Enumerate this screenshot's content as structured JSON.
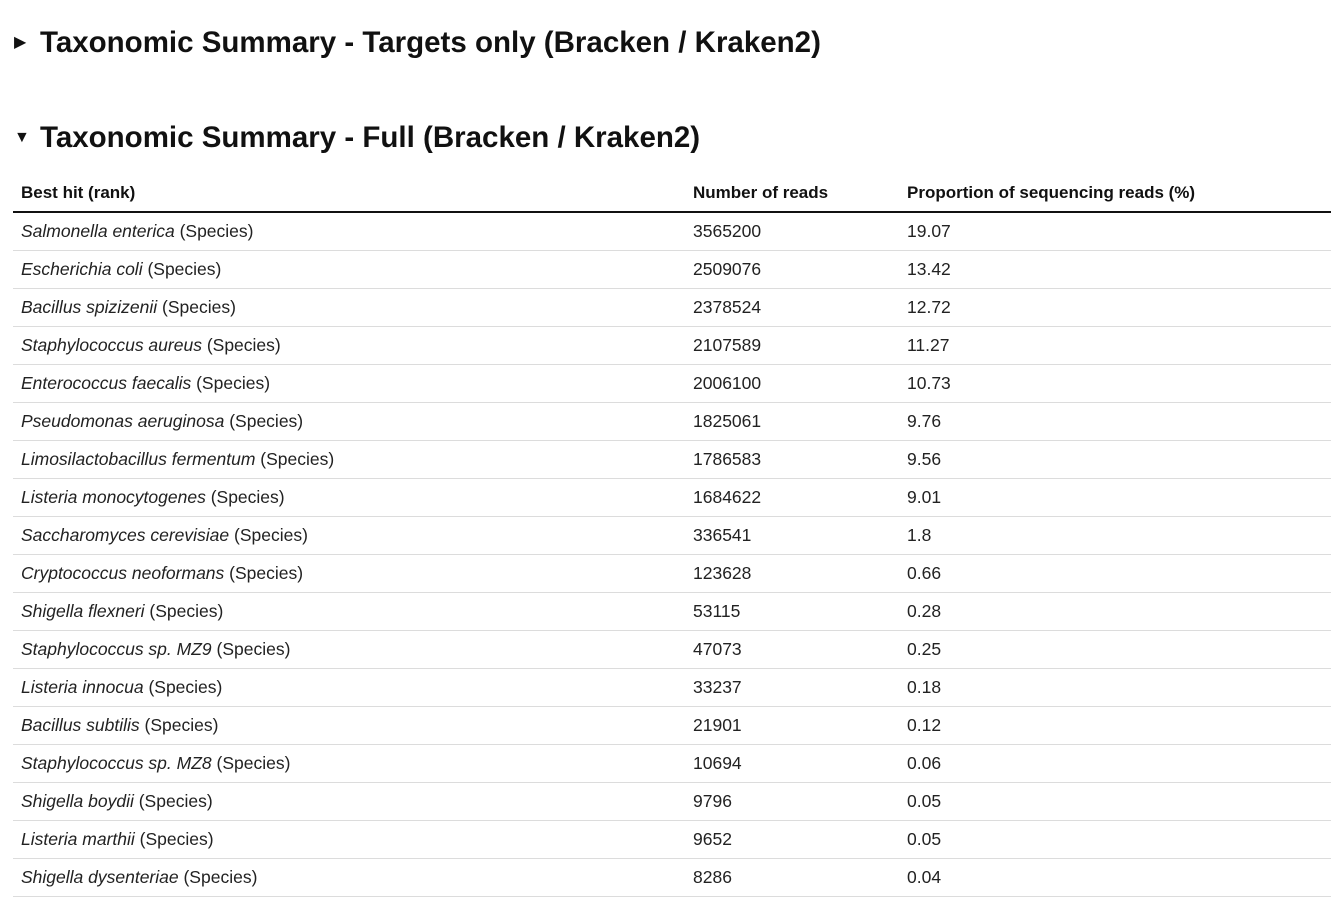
{
  "sections": {
    "targets": {
      "title": "Taxonomic Summary - Targets only (Bracken / Kraken2)",
      "expanded": false,
      "marker": "▶"
    },
    "full": {
      "title": "Taxonomic Summary - Full (Bracken / Kraken2)",
      "expanded": true,
      "marker": "▼"
    }
  },
  "table": {
    "headers": [
      "Best hit (rank)",
      "Number of reads",
      "Proportion of sequencing reads (%)"
    ],
    "rows": [
      {
        "species": "Salmonella enterica",
        "rank": "(Species)",
        "reads": "3565200",
        "proportion": "19.07"
      },
      {
        "species": "Escherichia coli",
        "rank": "(Species)",
        "reads": "2509076",
        "proportion": "13.42"
      },
      {
        "species": "Bacillus spizizenii",
        "rank": "(Species)",
        "reads": "2378524",
        "proportion": "12.72"
      },
      {
        "species": "Staphylococcus aureus",
        "rank": "(Species)",
        "reads": "2107589",
        "proportion": "11.27"
      },
      {
        "species": "Enterococcus faecalis",
        "rank": "(Species)",
        "reads": "2006100",
        "proportion": "10.73"
      },
      {
        "species": "Pseudomonas aeruginosa",
        "rank": "(Species)",
        "reads": "1825061",
        "proportion": "9.76"
      },
      {
        "species": "Limosilactobacillus fermentum",
        "rank": "(Species)",
        "reads": "1786583",
        "proportion": "9.56"
      },
      {
        "species": "Listeria monocytogenes",
        "rank": "(Species)",
        "reads": "1684622",
        "proportion": "9.01"
      },
      {
        "species": "Saccharomyces cerevisiae",
        "rank": "(Species)",
        "reads": "336541",
        "proportion": "1.8"
      },
      {
        "species": "Cryptococcus neoformans",
        "rank": "(Species)",
        "reads": "123628",
        "proportion": "0.66"
      },
      {
        "species": "Shigella flexneri",
        "rank": "(Species)",
        "reads": "53115",
        "proportion": "0.28"
      },
      {
        "species": "Staphylococcus sp. MZ9",
        "rank": "(Species)",
        "reads": "47073",
        "proportion": "0.25"
      },
      {
        "species": "Listeria innocua",
        "rank": "(Species)",
        "reads": "33237",
        "proportion": "0.18"
      },
      {
        "species": "Bacillus subtilis",
        "rank": "(Species)",
        "reads": "21901",
        "proportion": "0.12"
      },
      {
        "species": "Staphylococcus sp. MZ8",
        "rank": "(Species)",
        "reads": "10694",
        "proportion": "0.06"
      },
      {
        "species": "Shigella boydii",
        "rank": "(Species)",
        "reads": "9796",
        "proportion": "0.05"
      },
      {
        "species": "Listeria marthii",
        "rank": "(Species)",
        "reads": "9652",
        "proportion": "0.05"
      },
      {
        "species": "Shigella dysenteriae",
        "rank": "(Species)",
        "reads": "8286",
        "proportion": "0.04"
      }
    ]
  }
}
